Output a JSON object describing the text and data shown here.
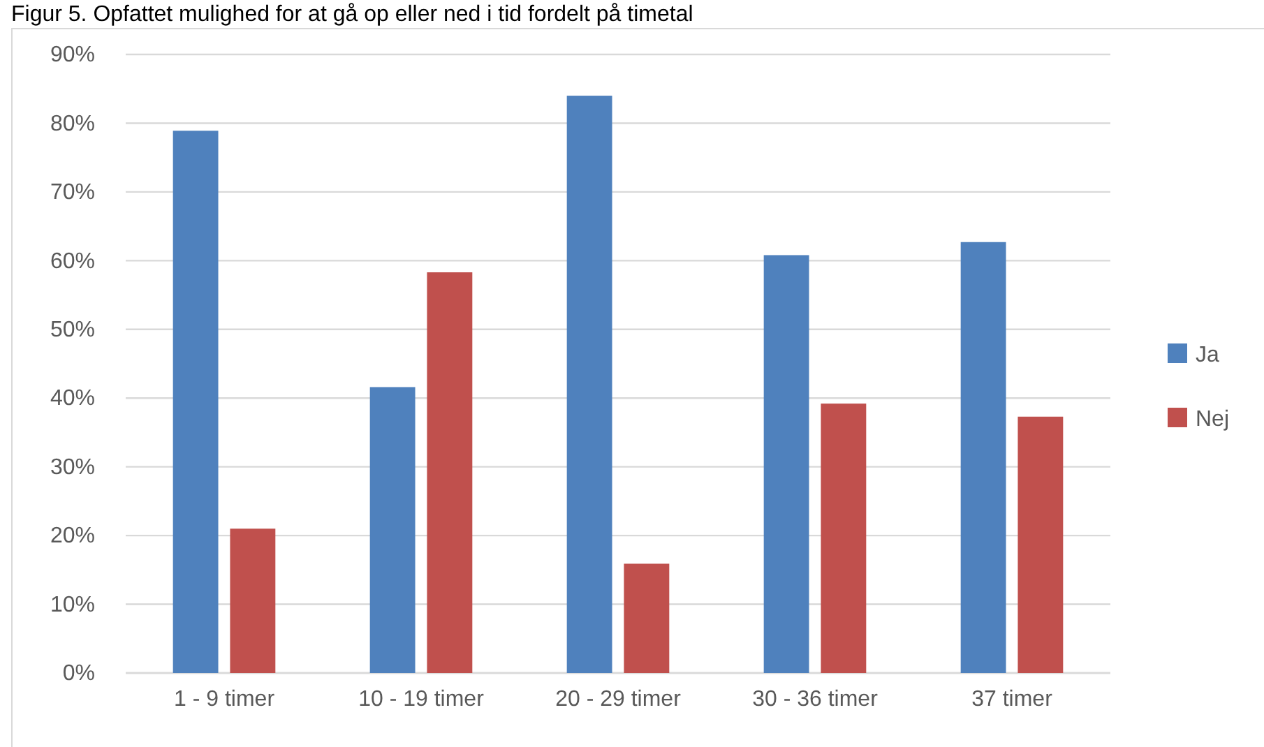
{
  "chart_data": {
    "type": "bar",
    "title": "Figur 5. Opfattet mulighed for at gå op eller ned i tid fordelt på timetal",
    "categories": [
      "1 - 9 timer",
      "10 - 19 timer",
      "20 - 29 timer",
      "30 - 36 timer",
      "37 timer"
    ],
    "series": [
      {
        "name": "Ja",
        "color": "#4f81bd",
        "values": [
          78.9,
          41.6,
          84.0,
          60.8,
          62.7
        ]
      },
      {
        "name": "Nej",
        "color": "#c0504d",
        "values": [
          21.0,
          58.3,
          15.9,
          39.2,
          37.3
        ]
      }
    ],
    "ylim": [
      0,
      90
    ],
    "yticks": [
      {
        "value": 0,
        "label": "0%"
      },
      {
        "value": 10,
        "label": "10%"
      },
      {
        "value": 20,
        "label": "20%"
      },
      {
        "value": 30,
        "label": "30%"
      },
      {
        "value": 40,
        "label": "40%"
      },
      {
        "value": 50,
        "label": "50%"
      },
      {
        "value": 60,
        "label": "60%"
      },
      {
        "value": 70,
        "label": "70%"
      },
      {
        "value": 80,
        "label": "80%"
      },
      {
        "value": 90,
        "label": "90%"
      }
    ],
    "grid": "y",
    "legend": "right"
  }
}
